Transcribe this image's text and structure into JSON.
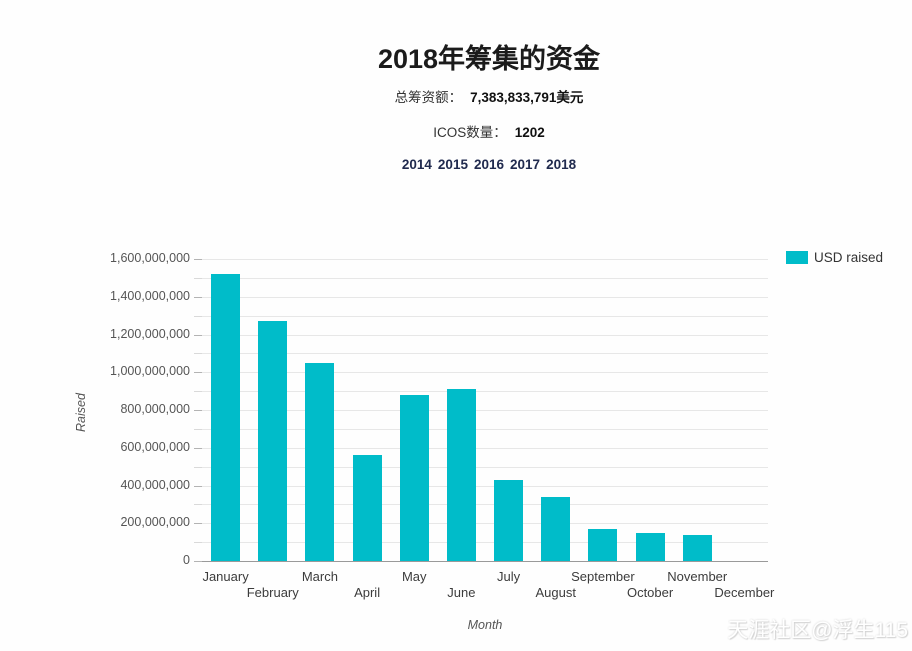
{
  "header": {
    "title": "2018年筹集的资金",
    "total_raised_label": "总筹资额：",
    "total_raised_value": "7,383,833,791美元",
    "icos_count_label": "ICOS数量：",
    "icos_count_value": "1202",
    "year_links": [
      "2014",
      "2015",
      "2016",
      "2017",
      "2018"
    ]
  },
  "chart_data": {
    "type": "bar",
    "title": "2018年筹集的资金",
    "categories": [
      "January",
      "February",
      "March",
      "April",
      "May",
      "June",
      "July",
      "August",
      "September",
      "October",
      "November",
      "December"
    ],
    "values": [
      1520000000,
      1270000000,
      1050000000,
      560000000,
      880000000,
      910000000,
      430000000,
      340000000,
      170000000,
      150000000,
      140000000,
      0
    ],
    "series_name": "USD raised",
    "xlabel": "Month",
    "ylabel": "Raised",
    "ylim": [
      0,
      1600000000
    ],
    "y_tick_interval": 200000000,
    "y_minor_tick_interval": 100000000,
    "grid": true,
    "legend_position": "top-right"
  },
  "colors": {
    "bar": "#00bcc9",
    "year_link": "#202a4e",
    "gridline": "#e7e7e7",
    "axis_line": "#9a9a9a"
  },
  "watermark": "天涯社区@浮生115"
}
